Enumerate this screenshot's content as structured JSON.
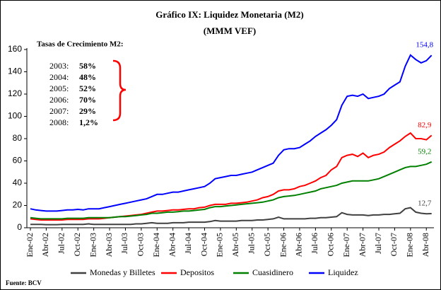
{
  "chart_data": {
    "type": "line",
    "title": "Gráfico IX: Liquidez Monetaria (M2)",
    "subtitle": "(MMM VEF)",
    "source": "Fuente: BCV",
    "annotation": {
      "title": "Tasas de Crecimiento M2:",
      "items": [
        {
          "year": "2003:",
          "rate": "58%"
        },
        {
          "year": "2004:",
          "rate": "48%"
        },
        {
          "year": "2005:",
          "rate": "52%"
        },
        {
          "year": "2006:",
          "rate": "70%"
        },
        {
          "year": "2007:",
          "rate": "29%"
        },
        {
          "year": "2008:",
          "rate": "1,2%"
        }
      ]
    },
    "categories": [
      "Ene-02",
      null,
      null,
      "Abr-02",
      null,
      null,
      "Jul-02",
      null,
      null,
      "Oct-02",
      null,
      null,
      "Ene-03",
      null,
      null,
      "Abr-03",
      null,
      null,
      "Jul-03",
      null,
      null,
      "Oct-03",
      null,
      null,
      "Ene-04",
      null,
      null,
      "Abr-04",
      null,
      null,
      "Jul-04",
      null,
      null,
      "Oct-04",
      null,
      null,
      "Ene-05",
      null,
      null,
      "Abr-05",
      null,
      null,
      "Jul-05",
      null,
      null,
      "Oct-05",
      null,
      null,
      "Ene-06",
      null,
      null,
      "Abr-06",
      null,
      null,
      "Jul-06",
      null,
      null,
      "Oct-06",
      null,
      null,
      "Ene-07",
      null,
      null,
      "Abr-07",
      null,
      null,
      "Jul-07",
      null,
      null,
      "Oct-07",
      null,
      null,
      "Ene-08",
      null,
      null,
      "Abr-08",
      null
    ],
    "ylim": [
      0,
      160
    ],
    "yticks": [
      0,
      20,
      40,
      60,
      80,
      100,
      120,
      140,
      160
    ],
    "grid": false,
    "series": [
      {
        "name": "Monedas y Billetes",
        "color": "#404040",
        "values": [
          3,
          3,
          3,
          2.8,
          2.8,
          2.8,
          3,
          3,
          3,
          3,
          3,
          3.5,
          3,
          3,
          3,
          3,
          3,
          3,
          3,
          3,
          3.5,
          3.5,
          4,
          4.5,
          4,
          4,
          4,
          4.5,
          4.5,
          4.5,
          5,
          5,
          5,
          5,
          5.5,
          6.5,
          6,
          6,
          6,
          6,
          6.5,
          6.5,
          6.5,
          7,
          7,
          7.5,
          8,
          9.5,
          8,
          8,
          8,
          8,
          8,
          8.5,
          8.5,
          9,
          9,
          9.5,
          10,
          13.5,
          12,
          11.5,
          11.5,
          11.5,
          11,
          11.5,
          11.5,
          12,
          12,
          12.5,
          13,
          17,
          18,
          14,
          13,
          12.5,
          12.7
        ],
        "value_labels": [
          null,
          null,
          null,
          null,
          null,
          null,
          null,
          null,
          null,
          null,
          null,
          null,
          null,
          null,
          null,
          null,
          null,
          null,
          null,
          null,
          null,
          null,
          null,
          null,
          null,
          null,
          null,
          null,
          null,
          null,
          null,
          null,
          null,
          null,
          null,
          null,
          null,
          null,
          null,
          null,
          null,
          null,
          null,
          null,
          null,
          null,
          null,
          null,
          null,
          null,
          null,
          null,
          null,
          null,
          null,
          null,
          null,
          null,
          null,
          null,
          null,
          null,
          null,
          null,
          null,
          null,
          null,
          null,
          null,
          null,
          null,
          null,
          null,
          null,
          null,
          null,
          "12,7"
        ]
      },
      {
        "name": "Depositos",
        "color": "#ff0000",
        "values": [
          8,
          7.5,
          7,
          7,
          7,
          7,
          7,
          7.5,
          7.5,
          7.5,
          7.5,
          8,
          8,
          8,
          8.5,
          9,
          9.5,
          10,
          10.5,
          11,
          11.5,
          12,
          13,
          14,
          15,
          15,
          15.5,
          16,
          16,
          16.5,
          17,
          17,
          18,
          18.5,
          20,
          21,
          21,
          21,
          22,
          22,
          22.5,
          23,
          24,
          25,
          27,
          28,
          30,
          33,
          34,
          34,
          35,
          37,
          38,
          40,
          42,
          45,
          47,
          52,
          55,
          63,
          65,
          66,
          64,
          67,
          63,
          65,
          66,
          68,
          72,
          75,
          78,
          82,
          85,
          80,
          80,
          79,
          82.9
        ],
        "value_labels": [
          null,
          null,
          null,
          null,
          null,
          null,
          null,
          null,
          null,
          null,
          null,
          null,
          null,
          null,
          null,
          null,
          null,
          null,
          null,
          null,
          null,
          null,
          null,
          null,
          null,
          null,
          null,
          null,
          null,
          null,
          null,
          null,
          null,
          null,
          null,
          null,
          null,
          null,
          null,
          null,
          null,
          null,
          null,
          null,
          null,
          null,
          null,
          null,
          null,
          null,
          null,
          null,
          null,
          null,
          null,
          null,
          null,
          null,
          null,
          null,
          null,
          null,
          null,
          null,
          null,
          null,
          null,
          null,
          null,
          null,
          null,
          null,
          null,
          null,
          null,
          null,
          "82,9"
        ]
      },
      {
        "name": "Cuasidinero",
        "color": "#008000",
        "values": [
          9,
          8.5,
          8,
          8,
          8,
          8,
          8,
          8.5,
          8.5,
          8.5,
          8.5,
          9,
          9,
          9,
          9,
          9,
          9.5,
          10,
          10,
          10.5,
          11,
          11.5,
          12,
          13,
          13,
          13.5,
          14,
          14,
          14.5,
          15,
          15,
          15.5,
          16,
          16.5,
          18,
          19,
          19,
          19.5,
          20,
          20.5,
          21,
          21.5,
          22,
          22.5,
          23,
          24,
          25,
          27,
          28,
          28.5,
          29,
          30,
          31,
          32,
          33,
          35,
          36,
          37,
          38,
          40,
          41,
          42,
          42,
          42,
          42,
          43,
          44,
          46,
          48,
          50,
          52,
          54,
          55,
          55,
          56,
          57,
          59.2
        ],
        "value_labels": [
          null,
          null,
          null,
          null,
          null,
          null,
          null,
          null,
          null,
          null,
          null,
          null,
          null,
          null,
          null,
          null,
          null,
          null,
          null,
          null,
          null,
          null,
          null,
          null,
          null,
          null,
          null,
          null,
          null,
          null,
          null,
          null,
          null,
          null,
          null,
          null,
          null,
          null,
          null,
          null,
          null,
          null,
          null,
          null,
          null,
          null,
          null,
          null,
          null,
          null,
          null,
          null,
          null,
          null,
          null,
          null,
          null,
          null,
          null,
          null,
          null,
          null,
          null,
          null,
          null,
          null,
          null,
          null,
          null,
          null,
          null,
          null,
          null,
          null,
          null,
          null,
          "59,2"
        ]
      },
      {
        "name": "Liquidez",
        "color": "#0000ff",
        "values": [
          17,
          16,
          15.5,
          15,
          15,
          15,
          15.5,
          16,
          16,
          16.5,
          16,
          17,
          17,
          17,
          18,
          19,
          20,
          21,
          22,
          23,
          24,
          25,
          26,
          28,
          30,
          30,
          31,
          32,
          32,
          33,
          34,
          35,
          36,
          37,
          40,
          44,
          45,
          46,
          47,
          47,
          48,
          49,
          50,
          52,
          54,
          56,
          58,
          65,
          70,
          71,
          71,
          72,
          75,
          78,
          82,
          85,
          88,
          92,
          97,
          110,
          118,
          119,
          118,
          120,
          116,
          117,
          118,
          120,
          125,
          128,
          131,
          145,
          155,
          151,
          148,
          150,
          154.8
        ],
        "value_labels": [
          null,
          null,
          null,
          null,
          null,
          null,
          null,
          null,
          null,
          null,
          null,
          null,
          null,
          null,
          null,
          null,
          null,
          null,
          null,
          null,
          null,
          null,
          null,
          null,
          null,
          null,
          null,
          null,
          null,
          null,
          null,
          null,
          null,
          null,
          null,
          null,
          null,
          null,
          null,
          null,
          null,
          null,
          null,
          null,
          null,
          null,
          null,
          null,
          null,
          null,
          null,
          null,
          null,
          null,
          null,
          null,
          null,
          null,
          null,
          null,
          null,
          null,
          null,
          null,
          null,
          null,
          null,
          null,
          null,
          null,
          null,
          null,
          null,
          null,
          null,
          null,
          "154,8"
        ]
      }
    ]
  }
}
